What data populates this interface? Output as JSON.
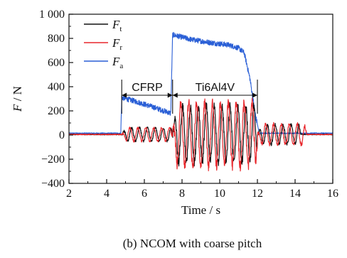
{
  "chart_data": {
    "type": "line",
    "xlabel": "Time / s",
    "ylabel": {
      "var": "F",
      "unit": " / N"
    },
    "xlim": [
      2,
      16
    ],
    "ylim": [
      -400,
      1000
    ],
    "x_ticks": [
      2,
      4,
      6,
      8,
      10,
      12,
      14,
      16
    ],
    "y_ticks": [
      -400,
      -200,
      0,
      200,
      400,
      600,
      800,
      1000
    ],
    "y_tick_labels": [
      "−400",
      "−200",
      "0",
      "200",
      "400",
      "600",
      "800",
      "1 000"
    ],
    "caption": "(b)  NCOM with coarse pitch",
    "grid": false,
    "legend_position": "top-left",
    "regions": [
      {
        "label": "CFRP",
        "x_start": 4.8,
        "x_end": 7.5,
        "y": 355
      },
      {
        "label": "Ti6Al4V",
        "x_start": 7.5,
        "x_end": 12.0,
        "y": 355
      }
    ],
    "series": [
      {
        "name": "F",
        "sub": "t",
        "color": "#111111",
        "baseline": 5,
        "segments": [
          {
            "x0": 4.8,
            "x1": 7.5,
            "amp": 55,
            "period": 0.42
          },
          {
            "x0": 7.5,
            "x1": 12.0,
            "amp": 230,
            "period": 0.42
          },
          {
            "x0": 12.0,
            "x1": 14.3,
            "amp": 80,
            "period": 0.42
          }
        ]
      },
      {
        "name": "F",
        "sub": "r",
        "color": "#e8262b",
        "baseline": 5,
        "segments": [
          {
            "x0": 4.8,
            "x1": 7.5,
            "amp": 55,
            "period": 0.42
          },
          {
            "x0": 7.5,
            "x1": 12.0,
            "amp": 260,
            "period": 0.42
          },
          {
            "x0": 12.0,
            "x1": 14.6,
            "amp": 85,
            "period": 0.42
          }
        ]
      },
      {
        "name": "F",
        "sub": "a",
        "color": "#2a5fd6",
        "baseline": 15,
        "points": [
          [
            2.0,
            15
          ],
          [
            4.75,
            15
          ],
          [
            4.8,
            310
          ],
          [
            5.5,
            280
          ],
          [
            6.5,
            230
          ],
          [
            7.4,
            180
          ],
          [
            7.5,
            830
          ],
          [
            8.5,
            790
          ],
          [
            9.5,
            765
          ],
          [
            10.5,
            745
          ],
          [
            11.0,
            720
          ],
          [
            11.3,
            680
          ],
          [
            11.6,
            470
          ],
          [
            11.9,
            160
          ],
          [
            12.1,
            15
          ],
          [
            16.0,
            15
          ]
        ],
        "noise": 22
      }
    ]
  }
}
